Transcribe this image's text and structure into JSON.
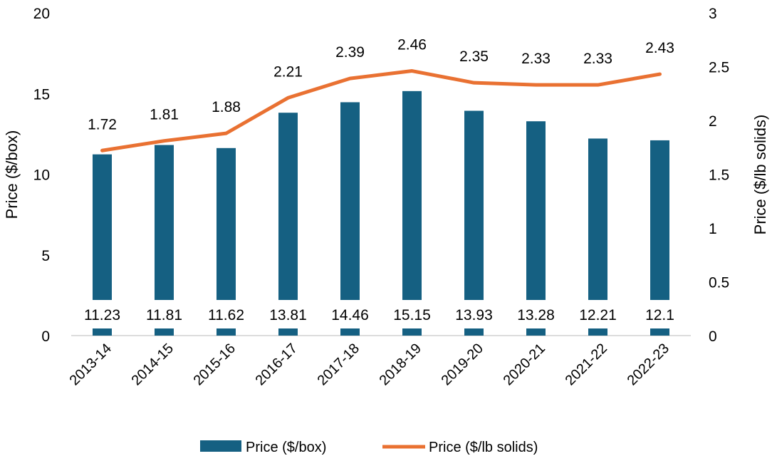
{
  "chart_data": {
    "type": "bar+line",
    "categories": [
      "2013-14",
      "2014-15",
      "2015-16",
      "2016-17",
      "2017-18",
      "2018-19",
      "2019-20",
      "2020-21",
      "2021-22",
      "2022-23"
    ],
    "series": [
      {
        "name": "Price ($/box)",
        "type": "bar",
        "axis": "left",
        "color": "#156082",
        "values": [
          11.23,
          11.81,
          11.62,
          13.81,
          14.46,
          15.15,
          13.93,
          13.28,
          12.21,
          12.1
        ],
        "labels": [
          "11.23",
          "11.81",
          "11.62",
          "13.81",
          "14.46",
          "15.15",
          "13.93",
          "13.28",
          "12.21",
          "12.1"
        ]
      },
      {
        "name": "Price ($/lb solids)",
        "type": "line",
        "axis": "right",
        "color": "#E97132",
        "values": [
          1.72,
          1.81,
          1.88,
          2.21,
          2.39,
          2.46,
          2.35,
          2.33,
          2.33,
          2.43
        ],
        "labels": [
          "1.72",
          "1.81",
          "1.88",
          "2.21",
          "2.39",
          "2.46",
          "2.35",
          "2.33",
          "2.33",
          "2.43"
        ]
      }
    ],
    "ylabel": "Price ($/box)",
    "y2label": "Price ($/lb solids)",
    "ylim": [
      0,
      20
    ],
    "y2lim": [
      0,
      3
    ],
    "yticks": [
      "0",
      "5",
      "10",
      "15",
      "20"
    ],
    "y2ticks": [
      "0",
      "0.5",
      "1",
      "1.5",
      "2",
      "2.5",
      "3"
    ],
    "grid": false,
    "legend_position": "bottom"
  }
}
